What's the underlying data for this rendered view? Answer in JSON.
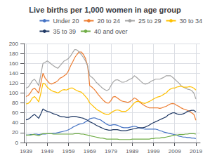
{
  "chart_data": {
    "type": "line",
    "title": "Live births per 1,000 women in age group",
    "x": [
      1939,
      1940,
      1941,
      1942,
      1943,
      1944,
      1945,
      1946,
      1947,
      1948,
      1949,
      1950,
      1951,
      1952,
      1953,
      1954,
      1955,
      1956,
      1957,
      1958,
      1959,
      1960,
      1961,
      1962,
      1963,
      1964,
      1965,
      1966,
      1967,
      1968,
      1969,
      1970,
      1971,
      1972,
      1973,
      1974,
      1975,
      1976,
      1977,
      1978,
      1979,
      1980,
      1981,
      1982,
      1983,
      1984,
      1985,
      1986,
      1987,
      1988,
      1989,
      1990,
      1991,
      1992,
      1993,
      1994,
      1995,
      1996,
      1997,
      1998,
      1999,
      2000,
      2001,
      2002,
      2003,
      2004,
      2005,
      2006,
      2007,
      2008,
      2009,
      2010,
      2011,
      2012,
      2013,
      2014,
      2015,
      2016,
      2017,
      2018,
      2019
    ],
    "series": [
      {
        "name": "Under 20",
        "color": "#4472C4",
        "values": [
          15,
          15,
          16,
          16,
          17,
          17,
          16,
          17,
          17,
          17,
          18,
          18,
          18,
          19,
          19,
          20,
          21,
          22,
          23,
          24,
          26,
          28,
          31,
          33,
          35,
          37,
          38,
          39,
          42,
          44,
          48,
          49,
          50,
          49,
          47,
          46,
          43,
          40,
          37,
          35,
          35,
          36,
          36,
          35,
          33,
          31,
          30,
          30,
          30,
          31,
          32,
          33,
          32,
          30,
          29,
          28,
          27,
          27,
          27,
          27,
          27,
          27,
          26,
          24,
          23,
          21,
          20,
          19,
          18,
          17,
          16,
          15,
          13,
          12,
          11,
          11,
          10,
          10,
          9,
          9,
          8
        ]
      },
      {
        "name": "20 to 24",
        "color": "#ED7D31",
        "values": [
          93,
          95,
          100,
          107,
          110,
          105,
          100,
          120,
          140,
          130,
          125,
          120,
          118,
          120,
          122,
          125,
          130,
          132,
          135,
          138,
          145,
          155,
          163,
          172,
          178,
          183,
          183,
          178,
          170,
          155,
          115,
          112,
          108,
          103,
          97,
          92,
          87,
          83,
          80,
          80,
          85,
          92,
          93,
          90,
          87,
          84,
          83,
          82,
          81,
          83,
          86,
          90,
          88,
          84,
          80,
          77,
          74,
          72,
          70,
          70,
          70,
          70,
          70,
          69,
          70,
          72,
          73,
          76,
          78,
          79,
          78,
          75,
          73,
          70,
          68,
          67,
          65,
          63,
          60,
          57,
          45
        ]
      },
      {
        "name": "25 to 29",
        "color": "#A5A5A5",
        "values": [
          110,
          112,
          118,
          125,
          128,
          122,
          115,
          138,
          160,
          162,
          165,
          162,
          158,
          155,
          152,
          150,
          155,
          160,
          165,
          167,
          170,
          175,
          182,
          188,
          187,
          183,
          178,
          172,
          165,
          155,
          135,
          132,
          128,
          122,
          118,
          114,
          110,
          107,
          105,
          107,
          115,
          122,
          126,
          127,
          125,
          122,
          122,
          123,
          126,
          128,
          130,
          135,
          132,
          128,
          124,
          120,
          118,
          119,
          121,
          124,
          126,
          128,
          128,
          128,
          130,
          132,
          135,
          135,
          135,
          132,
          128,
          124,
          120,
          115,
          112,
          110,
          108,
          107,
          105,
          100,
          88
        ]
      },
      {
        "name": "30 to 34",
        "color": "#FFC000",
        "values": [
          78,
          79,
          83,
          90,
          93,
          88,
          82,
          100,
          120,
          118,
          112,
          108,
          105,
          103,
          102,
          100,
          103,
          106,
          107,
          106,
          108,
          110,
          110,
          107,
          105,
          103,
          102,
          98,
          93,
          88,
          80,
          76,
          72,
          68,
          65,
          63,
          60,
          58,
          57,
          57,
          60,
          63,
          65,
          66,
          65,
          63,
          63,
          63,
          66,
          70,
          75,
          80,
          83,
          83,
          82,
          80,
          79,
          81,
          83,
          85,
          88,
          90,
          92,
          93,
          95,
          98,
          100,
          105,
          108,
          110,
          110,
          112,
          113,
          114,
          112,
          112,
          112,
          113,
          112,
          110,
          106
        ]
      },
      {
        "name": "35 to 39",
        "color": "#1F3864",
        "values": [
          46,
          47,
          50,
          54,
          57,
          53,
          49,
          58,
          68,
          65,
          63,
          62,
          60,
          58,
          57,
          55,
          53,
          52,
          52,
          51,
          51,
          52,
          53,
          53,
          52,
          51,
          50,
          49,
          47,
          45,
          42,
          40,
          38,
          35,
          33,
          31,
          29,
          27,
          26,
          25,
          25,
          26,
          26,
          26,
          25,
          24,
          24,
          24,
          25,
          26,
          27,
          28,
          29,
          30,
          30,
          30,
          31,
          33,
          35,
          38,
          40,
          42,
          44,
          46,
          48,
          50,
          52,
          56,
          58,
          60,
          60,
          58,
          57,
          57,
          58,
          60,
          63,
          64,
          65,
          65,
          62
        ]
      },
      {
        "name": "40 and over",
        "color": "#70AD47",
        "values": [
          15,
          15,
          15,
          16,
          16,
          15,
          14,
          16,
          18,
          18,
          18,
          18,
          18,
          17,
          17,
          17,
          17,
          17,
          17,
          17,
          17,
          17,
          17,
          18,
          18,
          18,
          17,
          17,
          16,
          15,
          14,
          13,
          12,
          11,
          10,
          9,
          9,
          8,
          7,
          7,
          7,
          7,
          7,
          7,
          6,
          6,
          6,
          6,
          6,
          6,
          7,
          7,
          7,
          7,
          7,
          7,
          7,
          7,
          7,
          8,
          8,
          9,
          9,
          9,
          10,
          10,
          11,
          12,
          13,
          14,
          15,
          15,
          16,
          16,
          16,
          17,
          17,
          18,
          18,
          18,
          17
        ]
      }
    ],
    "xlim": [
      1938,
      2021
    ],
    "xticks": [
      1939,
      1949,
      1959,
      1969,
      1979,
      1989,
      1999,
      2009,
      2019
    ],
    "ylim": [
      0,
      200
    ],
    "yticks": [
      0,
      20,
      40,
      60,
      80,
      100,
      120,
      140,
      160,
      180,
      200
    ],
    "grid": true,
    "legend": "upper right"
  }
}
